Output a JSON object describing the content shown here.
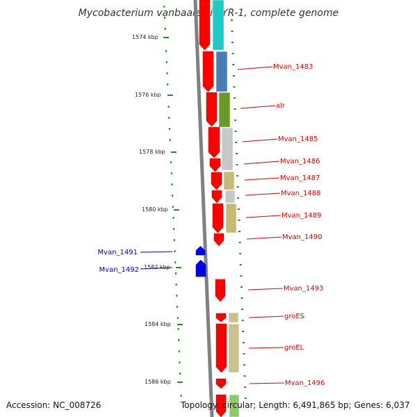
{
  "title": "Mycobacterium vanbaalenii PYR-1, complete genome",
  "accession": "Accession: NC_008726",
  "topology": "Topology: circular; Length: 6,491,865 bp; Genes: 6,037",
  "scale_ticks": [
    "1574 kbp",
    "1576 kbp",
    "1578 kbp",
    "1580 kbp",
    "1582 kbp",
    "1584 kbp",
    "1586 kbp"
  ],
  "colors": {
    "forward_gene": "#ff0000",
    "reverse_gene": "#0000ee",
    "forward_label": "#cc0000",
    "reverse_label": "#000099",
    "tick": "#228b22",
    "backbone": "#808080"
  },
  "genes": [
    {
      "label": "Mvan_1483",
      "strand": "forward"
    },
    {
      "label": "alr",
      "strand": "forward"
    },
    {
      "label": "Mvan_1485",
      "strand": "forward"
    },
    {
      "label": "Mvan_1486",
      "strand": "forward"
    },
    {
      "label": "Mvan_1487",
      "strand": "forward"
    },
    {
      "label": "Mvan_1488",
      "strand": "forward"
    },
    {
      "label": "Mvan_1489",
      "strand": "forward"
    },
    {
      "label": "Mvan_1490",
      "strand": "forward"
    },
    {
      "label": "Mvan_1491",
      "strand": "reverse"
    },
    {
      "label": "Mvan_1492",
      "strand": "reverse"
    },
    {
      "label": "Mvan_1493",
      "strand": "forward"
    },
    {
      "label": "groES",
      "strand": "forward"
    },
    {
      "label": "groEL",
      "strand": "forward"
    },
    {
      "label": "Mvan_1496",
      "strand": "forward"
    }
  ]
}
